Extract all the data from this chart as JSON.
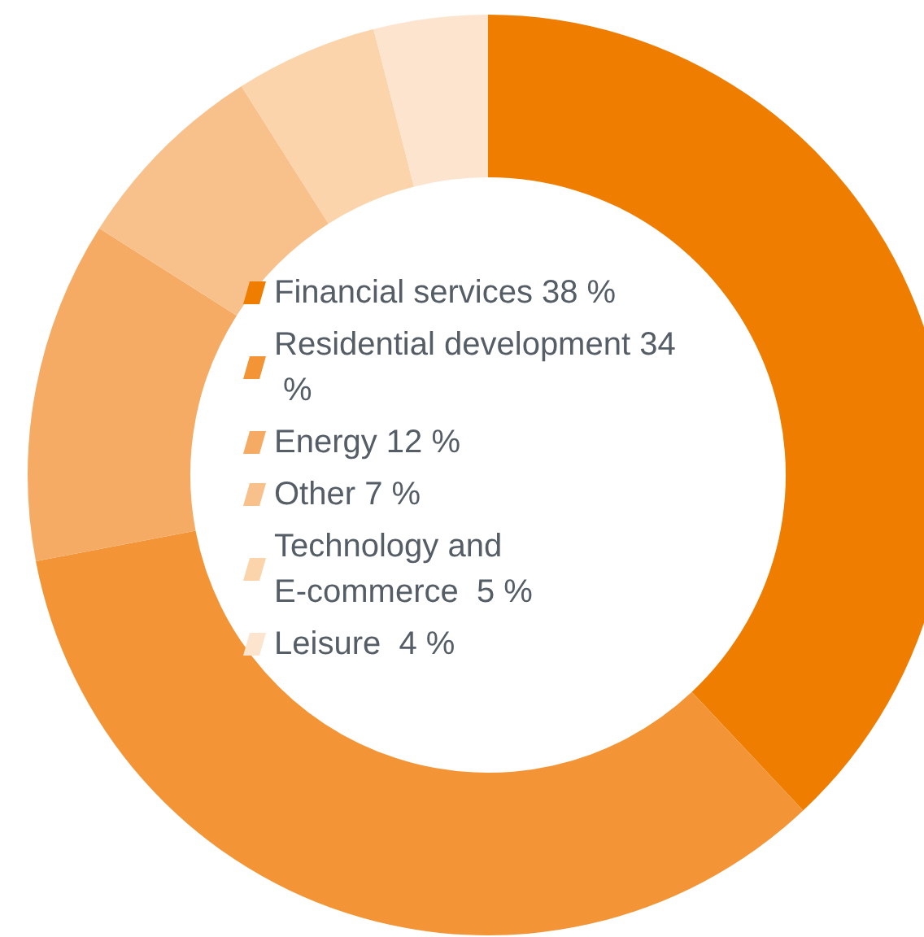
{
  "chart_data": {
    "type": "donut",
    "categories": [
      "Financial services",
      "Residential development",
      "Energy",
      "Other",
      "Technology and E-commerce",
      "Leisure"
    ],
    "values": [
      38,
      34,
      12,
      7,
      5,
      4
    ],
    "value_labels": [
      "38 %",
      "34 %",
      "12 %",
      "7 %",
      " 5 %",
      " 4 %"
    ],
    "colors": [
      "#ef7d00",
      "#f39536",
      "#f5ab63",
      "#f8c08a",
      "#fbd4ab",
      "#fde4cf"
    ],
    "legend": "center"
  }
}
